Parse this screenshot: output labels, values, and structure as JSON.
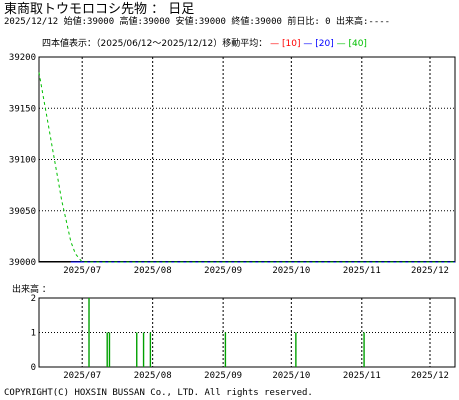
{
  "header": {
    "title": "東商取トウモロコシ先物 ： 日足",
    "info": "2025/12/12 始値:39000 高値:39000 安値:39000 終値:39000 前日比: 0 出来高:----"
  },
  "legend": {
    "label": "四本値表示：（2025/06/12〜2025/12/12）移動平均：",
    "ma": [
      {
        "dash": "—",
        "label": "[10]",
        "color": "#ff0000"
      },
      {
        "dash": "—",
        "label": "[20]",
        "color": "#0000ff"
      },
      {
        "dash": "—",
        "label": "[40]",
        "color": "#00c000"
      }
    ]
  },
  "volume_label": "出来高 ：",
  "copyright": "COPYRIGHT(C) HOXSIN BUSSAN Co., LTD. All rights reserved.",
  "chart_data": [
    {
      "type": "line",
      "xlabel": "",
      "ylabel": "",
      "x_range": [
        "2025-06-12",
        "2025-12-12"
      ],
      "ylim": [
        39000,
        39200
      ],
      "y_ticks": [
        39000,
        39050,
        39100,
        39150,
        39200
      ],
      "x_ticks": [
        {
          "date": "2025-07-01",
          "label": "2025/07"
        },
        {
          "date": "2025-08-01",
          "label": "2025/08"
        },
        {
          "date": "2025-09-01",
          "label": "2025/09"
        },
        {
          "date": "2025-10-01",
          "label": "2025/10"
        },
        {
          "date": "2025-11-01",
          "label": "2025/11"
        },
        {
          "date": "2025-12-01",
          "label": "2025/12"
        }
      ],
      "grid": true,
      "price_color": "#000000",
      "series": [
        {
          "name": "[10]",
          "color": "#ff0000",
          "x": [
            "2025-06-26",
            "2025-12-12"
          ],
          "y": [
            39000,
            39000
          ]
        },
        {
          "name": "[20]",
          "color": "#0000ff",
          "x": [
            "2025-06-26",
            "2025-12-12"
          ],
          "y": [
            39000,
            39000
          ]
        },
        {
          "name": "[40]",
          "color": "#00c000",
          "x": [
            "2025-06-12",
            "2025-06-14",
            "2025-06-16",
            "2025-06-18",
            "2025-06-20",
            "2025-06-22",
            "2025-06-24",
            "2025-06-26",
            "2025-06-28",
            "2025-07-01",
            "2025-12-12"
          ],
          "y": [
            39185,
            39160,
            39135,
            39110,
            39085,
            39060,
            39040,
            39020,
            39008,
            39000,
            39000
          ]
        }
      ],
      "price": {
        "x": [
          "2025-06-12",
          "2025-12-12"
        ],
        "y": [
          39000,
          39000
        ]
      }
    },
    {
      "type": "bar",
      "title": "出来高",
      "ylim": [
        0,
        2
      ],
      "y_ticks": [
        0,
        1,
        2
      ],
      "grid": true,
      "color": "#00a000",
      "x": [
        "2025-07-04",
        "2025-07-12",
        "2025-07-13",
        "2025-07-25",
        "2025-07-28",
        "2025-07-31",
        "2025-09-02",
        "2025-10-03",
        "2025-11-02"
      ],
      "values": [
        2,
        1,
        1,
        1,
        1,
        1,
        1,
        1,
        1
      ]
    }
  ]
}
